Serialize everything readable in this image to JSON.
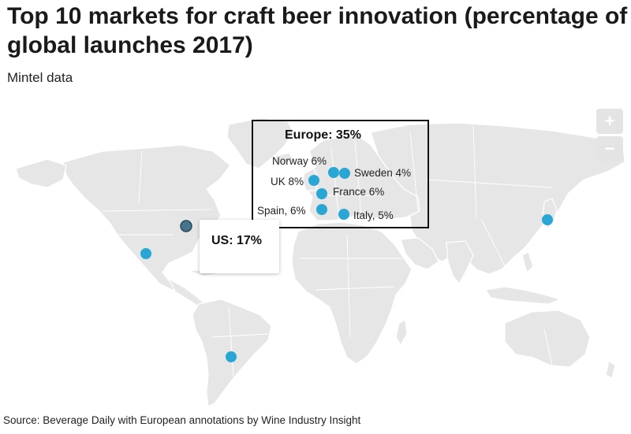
{
  "title": "Top 10 markets for craft beer innovation (percentage of global launches 2017)",
  "subtitle": "Mintel data",
  "source": "Source: Beverage Daily with European annotations by Wine Industry Insight",
  "zoom": {
    "in_label": "+",
    "out_label": "−"
  },
  "europe_annotation": {
    "title": "Europe: 35%"
  },
  "tooltip": {
    "text": "US: 17%"
  },
  "markers": [
    {
      "name": "Norway",
      "label": "Norway 6%"
    },
    {
      "name": "Sweden",
      "label": "Sweden 4%"
    },
    {
      "name": "UK",
      "label": "UK 8%"
    },
    {
      "name": "France",
      "label": "France 6%"
    },
    {
      "name": "Spain",
      "label": "Spain, 6%"
    },
    {
      "name": "Italy",
      "label": "Italy, 5%"
    },
    {
      "name": "US",
      "label": ""
    },
    {
      "name": "Mexico",
      "label": ""
    },
    {
      "name": "Brazil",
      "label": ""
    },
    {
      "name": "Japan",
      "label": ""
    }
  ],
  "colors": {
    "marker": "#2aa6d5",
    "marker_highlight": "#45758c",
    "land": "#e6e6e6",
    "border": "#ffffff"
  }
}
